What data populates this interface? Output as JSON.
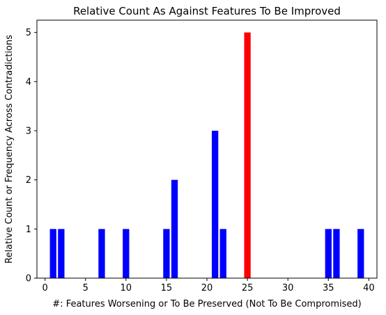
{
  "chart_data": {
    "type": "bar",
    "title": "Relative Count As Against Features To Be Improved",
    "xlabel": "#: Features Worsening or To Be Preserved (Not To Be Compromised)",
    "ylabel": "Relative Count or Frequency Across Contradictions",
    "xlim": [
      -1,
      41
    ],
    "ylim": [
      0,
      5.25
    ],
    "xticks": [
      0,
      5,
      10,
      15,
      20,
      25,
      30,
      35,
      40
    ],
    "yticks": [
      0,
      1,
      2,
      3,
      4,
      5
    ],
    "grid": false,
    "x": [
      1,
      2,
      7,
      10,
      15,
      16,
      21,
      22,
      25,
      35,
      36,
      39
    ],
    "values": [
      1,
      1,
      1,
      1,
      1,
      2,
      3,
      1,
      5,
      1,
      1,
      1
    ],
    "colors": [
      "#0000ff",
      "#0000ff",
      "#0000ff",
      "#0000ff",
      "#0000ff",
      "#0000ff",
      "#0000ff",
      "#0000ff",
      "#ff0000",
      "#0000ff",
      "#0000ff",
      "#0000ff"
    ]
  }
}
